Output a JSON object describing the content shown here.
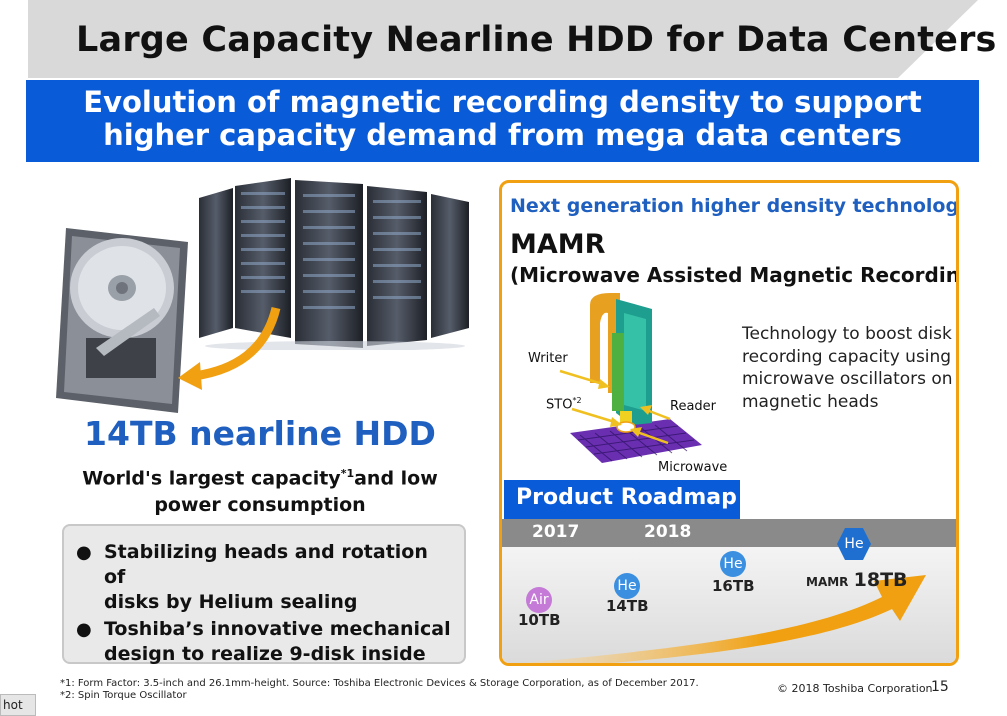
{
  "title": "Large Capacity Nearline HDD for Data Centers",
  "subtitle": {
    "line1": "Evolution of magnetic recording density to support",
    "line2": "higher capacity demand from mega data centers"
  },
  "hdd_panel": {
    "title": "14TB nearline HDD",
    "sub_line1_a": "World's largest capacity",
    "sub_line1_sup": "*1",
    "sub_line1_b": "and low",
    "sub_line2": "power consumption",
    "features": [
      {
        "line1": "Stabilizing heads and rotation of",
        "line2": "disks by Helium sealing"
      },
      {
        "line1": "Toshiba’s innovative mechanical",
        "line2": "design to realize 9-disk inside"
      }
    ]
  },
  "mamr_panel": {
    "next_gen": "Next generation higher density technology",
    "title": "MAMR",
    "full_name": "(Microwave Assisted Magnetic Recording)",
    "description": "Technology to boost disk recording capacity using microwave oscillators on magnetic heads",
    "diagram_labels": {
      "writer": "Writer",
      "sto": "STO",
      "sto_sup": "*2",
      "reader": "Reader",
      "microwave": "Microwave"
    }
  },
  "roadmap": {
    "heading": "Product Roadmap",
    "years": [
      "2017",
      "2018"
    ],
    "items": [
      {
        "badge": "Air",
        "capacity": "10TB",
        "badge_color": "#c47ad6"
      },
      {
        "badge": "He",
        "capacity": "14TB",
        "badge_color": "#3a8fe0"
      },
      {
        "badge": "He",
        "capacity": "16TB",
        "badge_color": "#3a8fe0"
      },
      {
        "badge": "He",
        "prefix": "MAMR",
        "capacity": "18TB",
        "badge_color": "#1f6fd0"
      }
    ]
  },
  "footer": {
    "note1": "*1: Form Factor: 3.5-inch and 26.1mm-height. Source: Toshiba Electronic Devices & Storage Corporation, as of December 2017.",
    "note2": "*2: Spin Torque Oscillator",
    "copyright": "© 2018 Toshiba Corporation",
    "page_number": "15",
    "corner_tab": "hot"
  },
  "colors": {
    "brand_blue": "#0a5bd8",
    "accent_orange": "#f0a010",
    "title_gray": "#d9d9d9",
    "hdd_title_blue": "#1f5fbf"
  }
}
